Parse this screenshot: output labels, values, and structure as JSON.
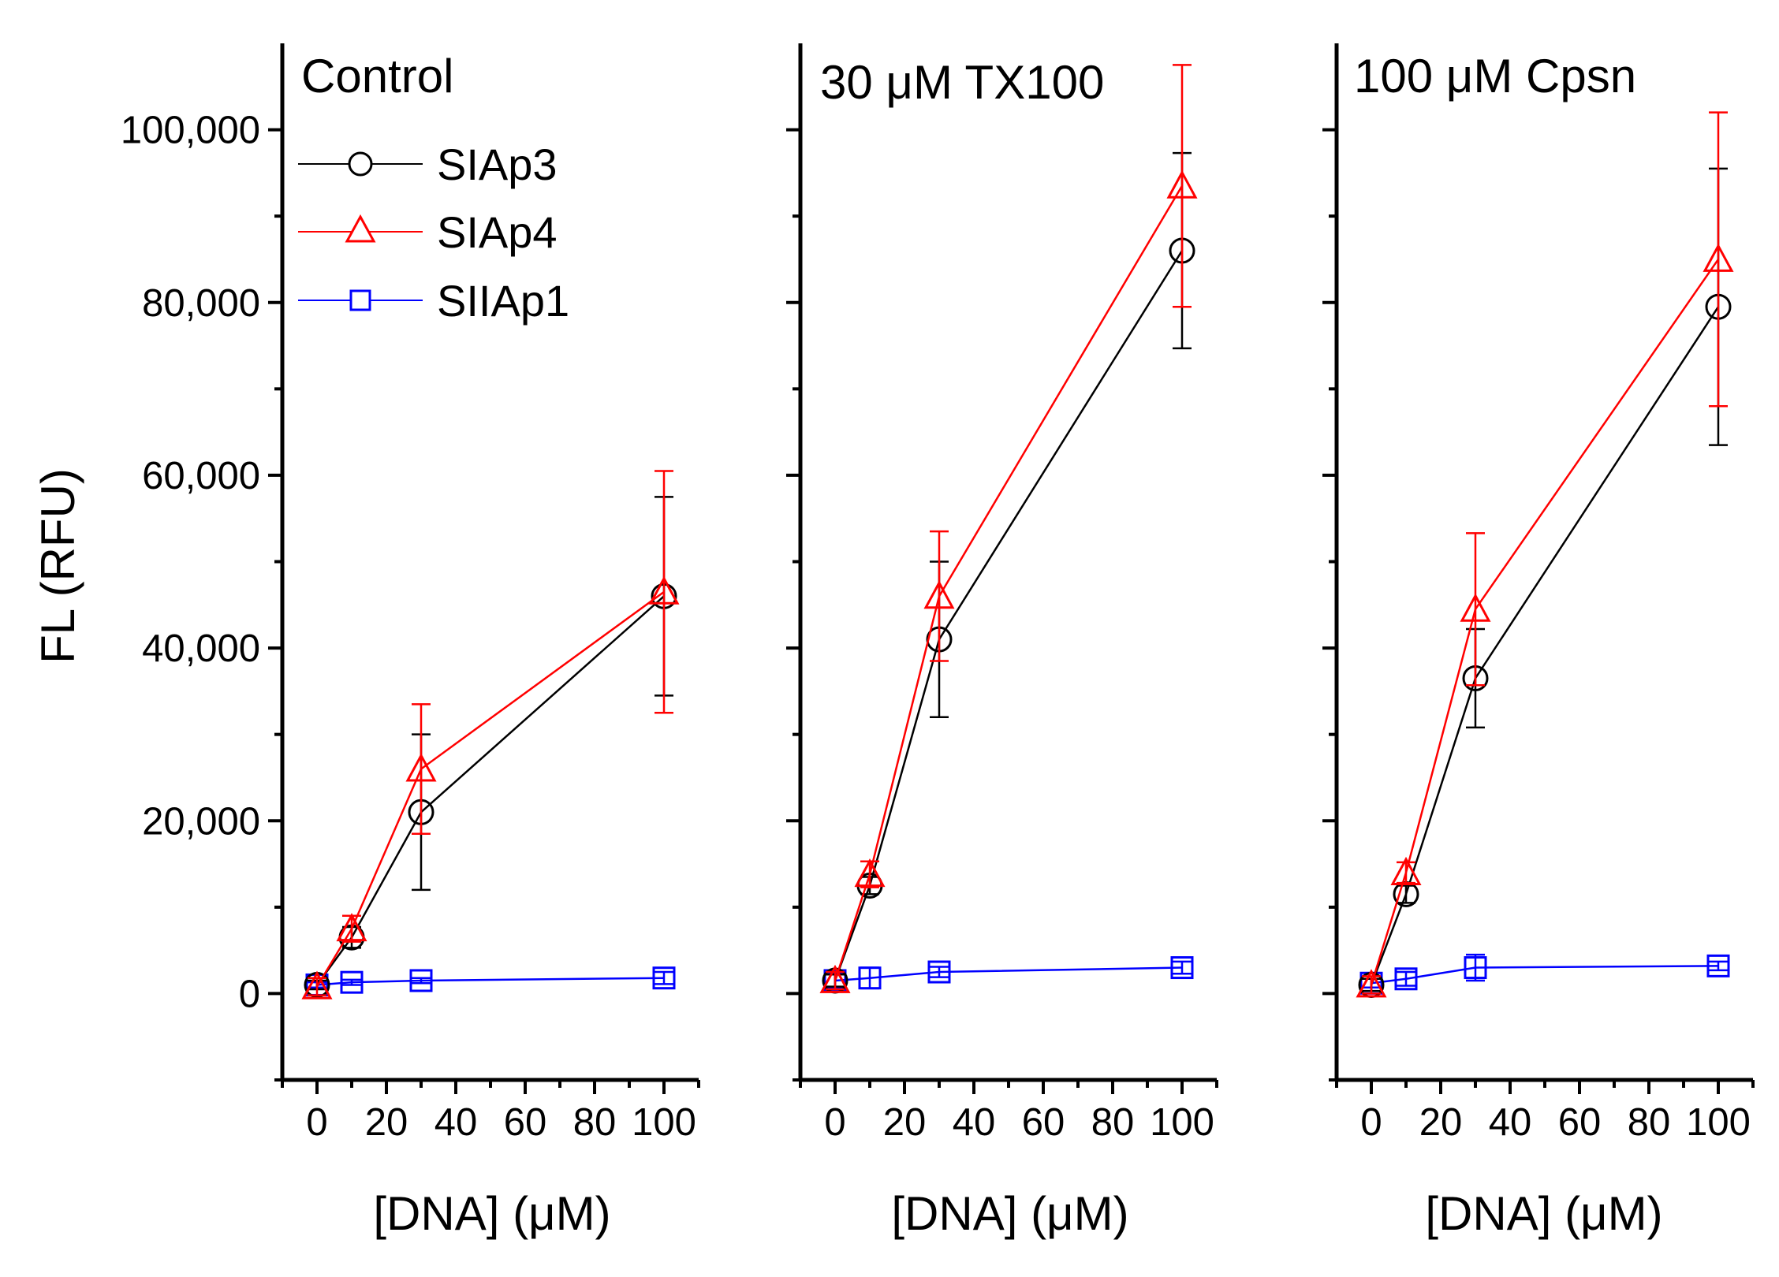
{
  "chart_data": {
    "type": "line",
    "ylabel": "FL (RFU)",
    "xlabel": "[DNA] (μM)",
    "ylim": [
      -10000,
      110000
    ],
    "xlim": [
      -10,
      110
    ],
    "yticks": [
      0,
      20000,
      40000,
      60000,
      80000,
      100000
    ],
    "ytick_labels": [
      "0",
      "20,000",
      "40,000",
      "60,000",
      "80,000",
      "100,000"
    ],
    "xticks": [
      0,
      20,
      40,
      60,
      80,
      100
    ],
    "xtick_labels": [
      "0",
      "20",
      "40",
      "60",
      "80",
      "100"
    ],
    "legend": [
      {
        "name": "SIAp3",
        "color": "#000000",
        "marker": "circle"
      },
      {
        "name": "SIAp4",
        "color": "#ff0000",
        "marker": "triangle"
      },
      {
        "name": "SIIAp1",
        "color": "#0000ff",
        "marker": "square"
      }
    ],
    "panels": [
      {
        "title": "Control",
        "series": [
          {
            "name": "SIAp3",
            "x": [
              0,
              10,
              30,
              100
            ],
            "y": [
              1000,
              6500,
              21000,
              46000
            ],
            "err": [
              500,
              1200,
              9000,
              11500
            ]
          },
          {
            "name": "SIAp4",
            "x": [
              0,
              10,
              30,
              100
            ],
            "y": [
              800,
              7500,
              26000,
              46500
            ],
            "err": [
              1000,
              1500,
              7500,
              14000
            ]
          },
          {
            "name": "SIIAp1",
            "x": [
              0,
              10,
              30,
              100
            ],
            "y": [
              1000,
              1300,
              1500,
              1800
            ],
            "err": [
              300,
              300,
              300,
              700
            ]
          }
        ]
      },
      {
        "title": "30 μM TX100",
        "series": [
          {
            "name": "SIAp3",
            "x": [
              0,
              10,
              30,
              100
            ],
            "y": [
              1500,
              12500,
              41000,
              86000
            ],
            "err": [
              700,
              1000,
              9000,
              11300
            ]
          },
          {
            "name": "SIAp4",
            "x": [
              0,
              10,
              30,
              100
            ],
            "y": [
              1500,
              13800,
              46000,
              93500
            ],
            "err": [
              1000,
              1500,
              7500,
              14000
            ]
          },
          {
            "name": "SIIAp1",
            "x": [
              0,
              10,
              30,
              100
            ],
            "y": [
              1500,
              1800,
              2500,
              3000
            ],
            "err": [
              800,
              1200,
              600,
              700
            ]
          }
        ]
      },
      {
        "title": "100 μM Cpsn",
        "series": [
          {
            "name": "SIAp3",
            "x": [
              0,
              10,
              30,
              100
            ],
            "y": [
              1000,
              11500,
              36500,
              79500
            ],
            "err": [
              700,
              1000,
              5700,
              16000
            ]
          },
          {
            "name": "SIAp4",
            "x": [
              0,
              10,
              30,
              100
            ],
            "y": [
              1000,
              14000,
              44500,
              85000
            ],
            "err": [
              1000,
              1200,
              8800,
              17000
            ]
          },
          {
            "name": "SIIAp1",
            "x": [
              0,
              10,
              30,
              100
            ],
            "y": [
              1200,
              1700,
              3000,
              3200
            ],
            "err": [
              500,
              800,
              1500,
              500
            ]
          }
        ]
      }
    ]
  }
}
